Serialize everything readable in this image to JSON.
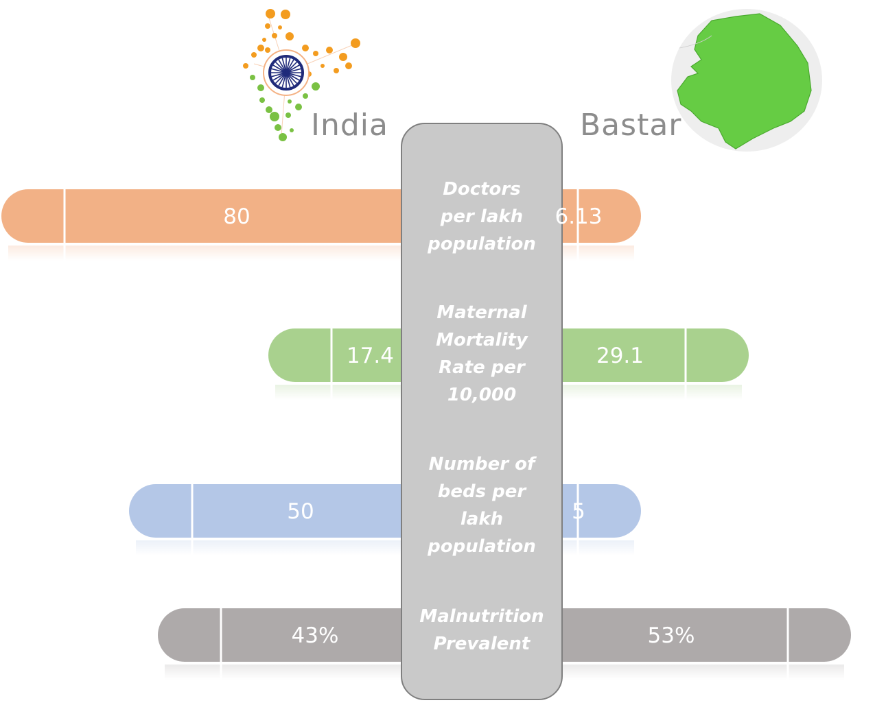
{
  "header": {
    "left_label": "India",
    "right_label": "Bastar",
    "left_icon": "india-dot-map-logo-with-ashoka-chakra",
    "right_icon": "bastar-district-map-circle"
  },
  "chart_data": {
    "type": "bar",
    "layout": "back-to-back horizontal",
    "title": "",
    "series": [
      {
        "name": "India",
        "values": [
          80,
          17.4,
          50,
          43
        ]
      },
      {
        "name": "Bastar",
        "values": [
          6.13,
          29.1,
          5,
          53
        ]
      }
    ],
    "categories": [
      "Doctors per lakh population",
      "Maternal Mortality Rate per 10,000",
      "Number of beds per lakh population",
      "Malnutrition Prevalent"
    ],
    "value_labels": {
      "India": [
        "80",
        "17.4",
        "50",
        "43%"
      ],
      "Bastar": [
        "6.13",
        "29.1",
        "5",
        "53%"
      ]
    },
    "colors": [
      "#f2b186",
      "#a9d18e",
      "#b4c7e7",
      "#aeaaaa"
    ],
    "center_panel_color": "#c9c9c9",
    "grid": false,
    "legend": "none"
  }
}
